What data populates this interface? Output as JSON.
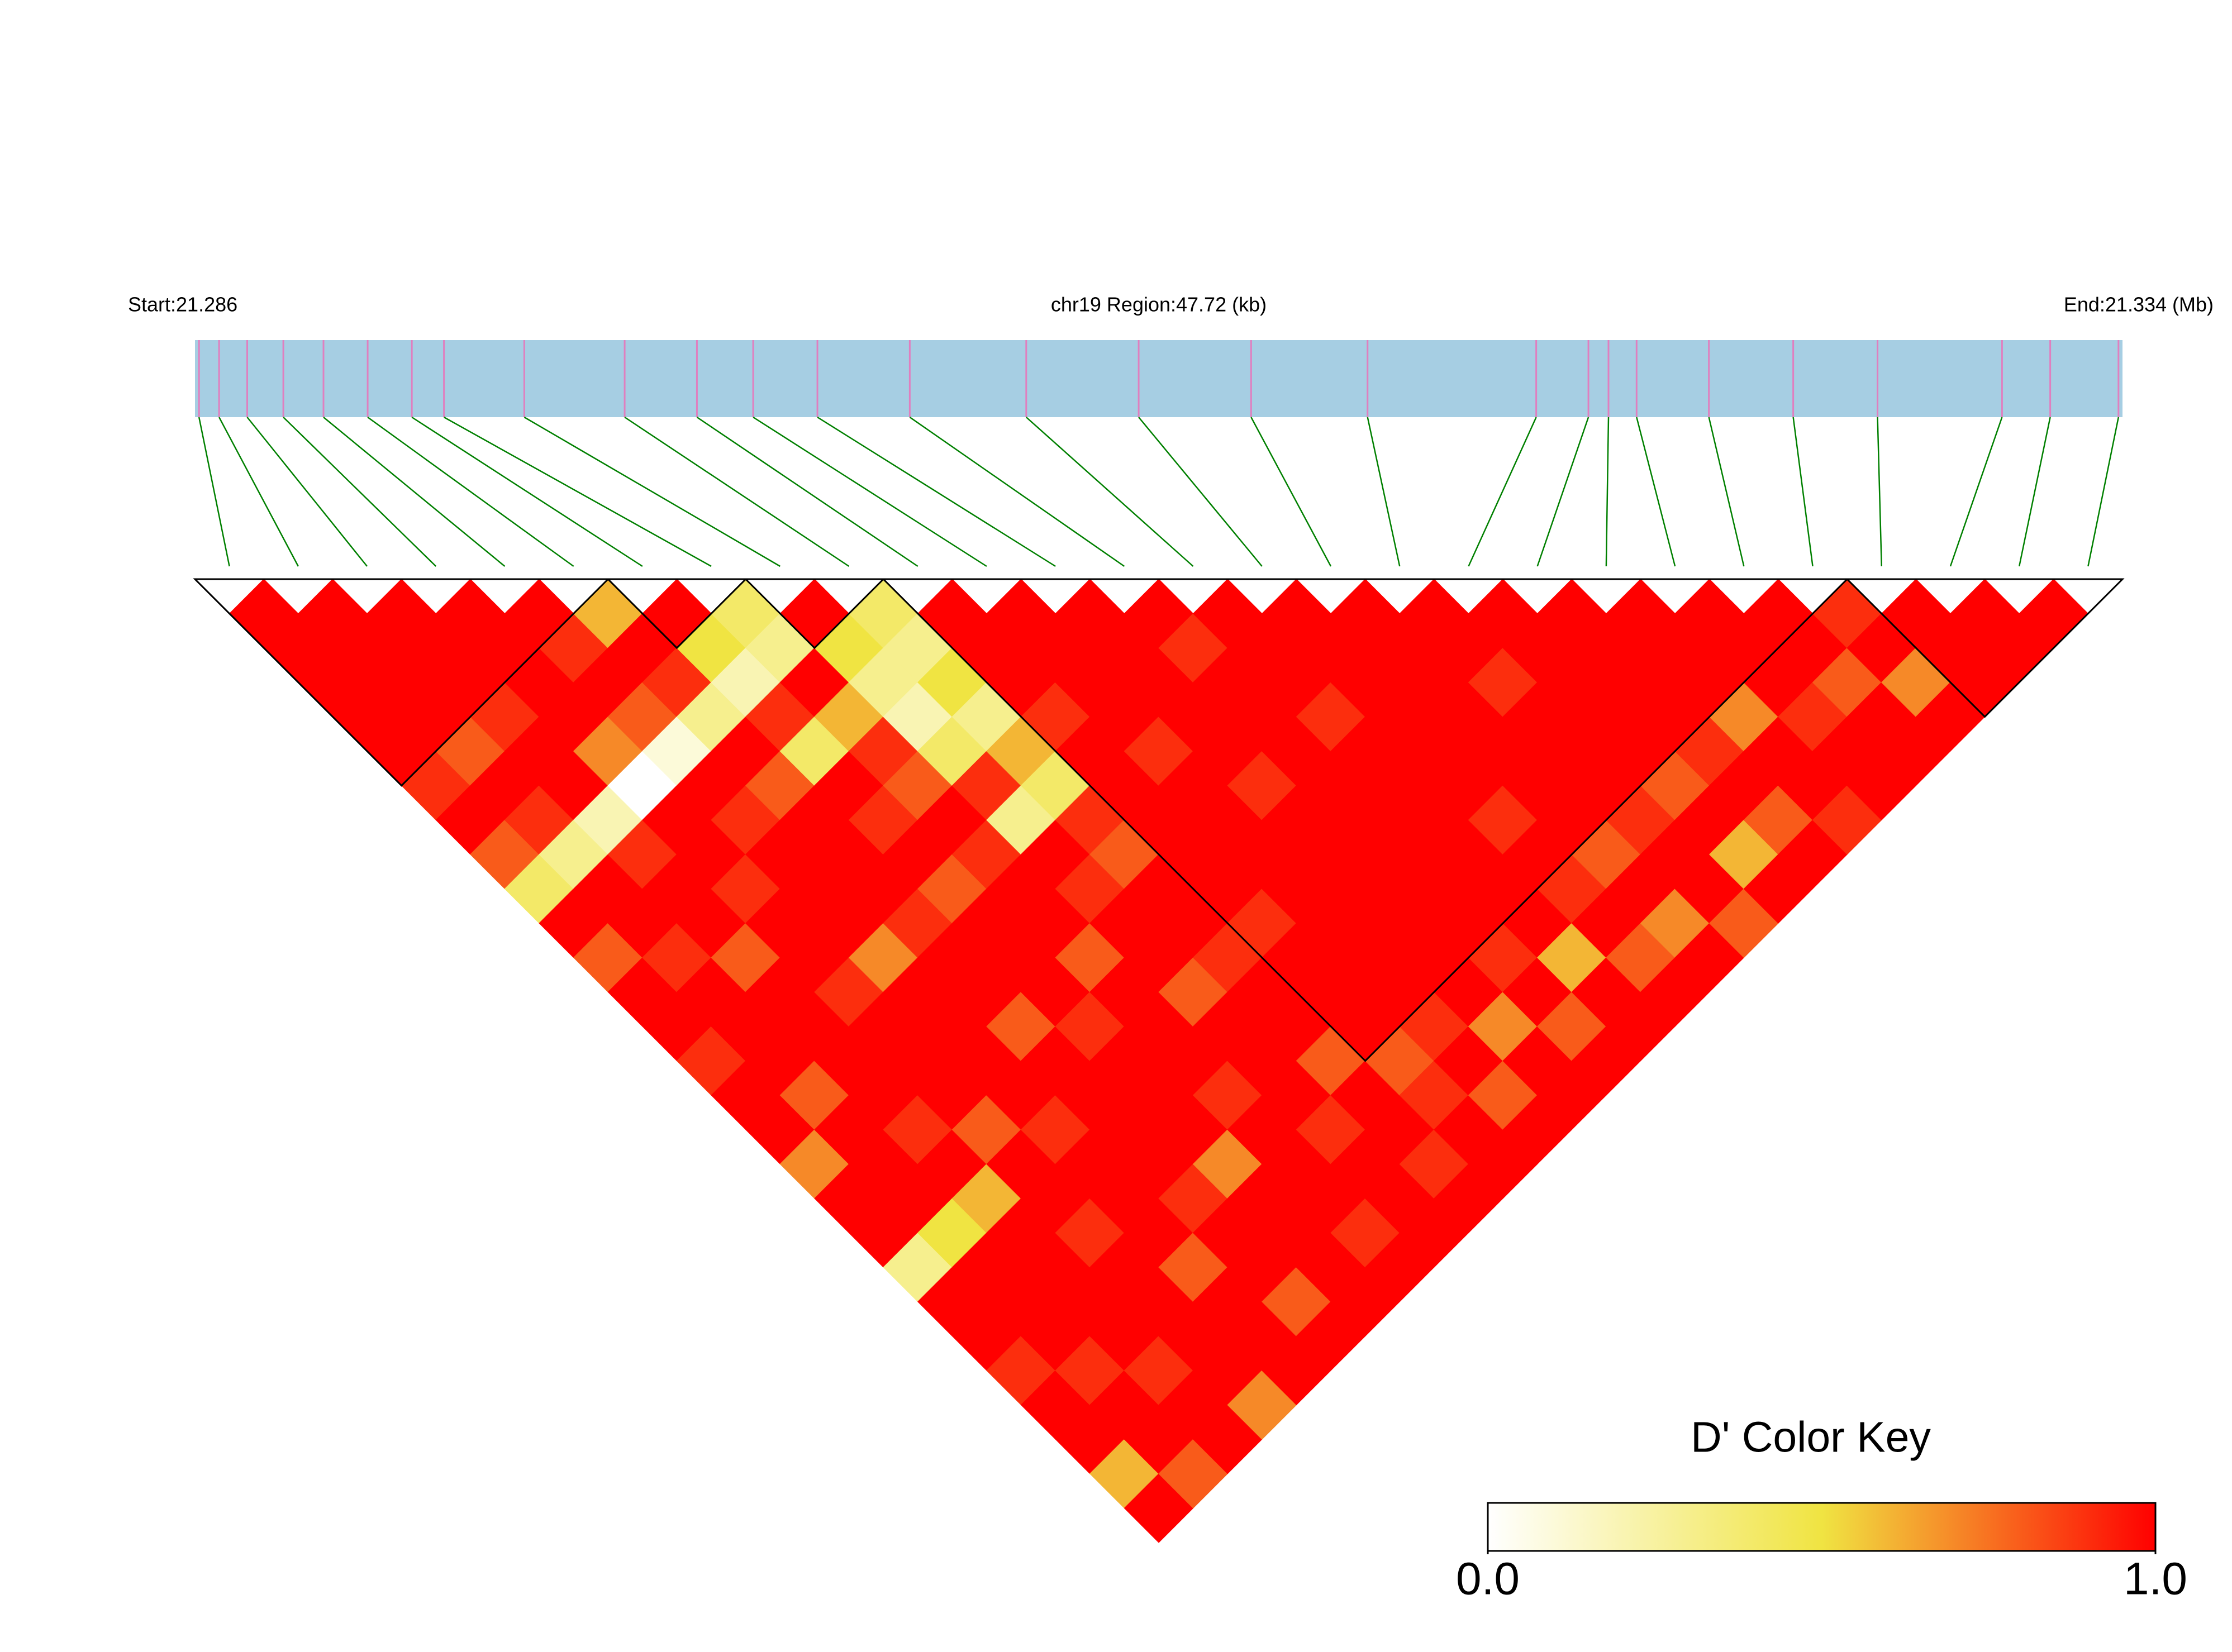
{
  "chart_data": {
    "type": "ld_heatmap",
    "start_label": "Start:21.286",
    "region_label": "chr19 Region:47.72 (kb)",
    "end_label": "End:21.334 (Mb)",
    "xlim": [
      21.286,
      21.334
    ],
    "bar_color": "#a6cee3",
    "snp_line_color": "#e07fbf",
    "connector_color": "#008000",
    "block_color": "#000000",
    "snp_positions": [
      21.2861,
      21.2866,
      21.2873,
      21.2882,
      21.2892,
      21.2903,
      21.2914,
      21.2922,
      21.2942,
      21.2967,
      21.2985,
      21.2999,
      21.3015,
      21.3038,
      21.3067,
      21.3095,
      21.3123,
      21.3152,
      21.3194,
      21.3207,
      21.3212,
      21.3219,
      21.3237,
      21.3258,
      21.3279,
      21.331,
      21.3322,
      21.3339
    ],
    "ld_matrix": [
      [
        1,
        1,
        1,
        1,
        1,
        0.9,
        1,
        0.8,
        0.4,
        1,
        0.8,
        1,
        1,
        0.9,
        1,
        1,
        0.7,
        1,
        1,
        0.3,
        1,
        1,
        0.9,
        1,
        1,
        0.6,
        1
      ],
      [
        1,
        1,
        1,
        1,
        0.8,
        1,
        0.9,
        0.3,
        1,
        1,
        0.9,
        1,
        1,
        1,
        0.8,
        1,
        1,
        1,
        0.5,
        1,
        1,
        1,
        0.9,
        1,
        1,
        0.8
      ],
      [
        1,
        1,
        1,
        0.9,
        1,
        1,
        0.2,
        0.9,
        1,
        1,
        0.8,
        1,
        1,
        1,
        1,
        0.9,
        1,
        0.6,
        1,
        1,
        1,
        1,
        0.9,
        1,
        1
      ],
      [
        1,
        1,
        1,
        1,
        0.7,
        0,
        1,
        1,
        0.9,
        1,
        1,
        0.9,
        1,
        1,
        1,
        0.8,
        1,
        1,
        0.9,
        1,
        1,
        1,
        1,
        0.7
      ],
      [
        1,
        0.9,
        1,
        0.8,
        0.1,
        1,
        0.9,
        1,
        1,
        1,
        0.7,
        1,
        1,
        1,
        1,
        0.9,
        1,
        1,
        1,
        0.8,
        1,
        1,
        1
      ],
      [
        0.6,
        1,
        0.9,
        0.3,
        1,
        0.8,
        1,
        1,
        1,
        0.9,
        1,
        1,
        0.8,
        1,
        1,
        1,
        1,
        0.9,
        1,
        1,
        0.8,
        1
      ],
      [
        1,
        0.5,
        0.2,
        0.9,
        0.4,
        1,
        0.9,
        1,
        0.8,
        1,
        1,
        1,
        0.9,
        1,
        1,
        1,
        0.7,
        1,
        1,
        1,
        1
      ],
      [
        0.4,
        0.3,
        1,
        0.6,
        0.9,
        0.8,
        1,
        0.9,
        1,
        1,
        0.8,
        1,
        1,
        1,
        0.9,
        1,
        1,
        1,
        0.9,
        1
      ],
      [
        1,
        0.5,
        0.3,
        0.2,
        0.4,
        0.9,
        0.3,
        1,
        0.9,
        1,
        1,
        0.8,
        1,
        1,
        1,
        0.9,
        1,
        1,
        1
      ],
      [
        0.4,
        0.3,
        0.5,
        0.3,
        0.6,
        0.4,
        0.9,
        0.8,
        1,
        1,
        0.9,
        1,
        1,
        0.8,
        1,
        1,
        0.9,
        1
      ],
      [
        1,
        1,
        1,
        0.9,
        1,
        1,
        1,
        1,
        1,
        0.9,
        1,
        1,
        1,
        0.8,
        0.9,
        1,
        1
      ],
      [
        1,
        1,
        1,
        1,
        0.9,
        1,
        1,
        1,
        1,
        1,
        1,
        1,
        0.9,
        1,
        0.8,
        1
      ],
      [
        1,
        1,
        1,
        1,
        1,
        0.9,
        1,
        1,
        1,
        1,
        1,
        1,
        0.7,
        1,
        1
      ],
      [
        1,
        0.9,
        1,
        1,
        1,
        1,
        1,
        1,
        1,
        1,
        0.9,
        1,
        0.8,
        1
      ],
      [
        1,
        1,
        1,
        0.9,
        1,
        1,
        1,
        1,
        1,
        1,
        0.6,
        1,
        1
      ],
      [
        1,
        1,
        1,
        1,
        1,
        1,
        0.9,
        1,
        0.9,
        1,
        0.8,
        1
      ],
      [
        1,
        1,
        1,
        1,
        1,
        1,
        1,
        0.8,
        1,
        0.7,
        1
      ],
      [
        1,
        1,
        0.9,
        1,
        1,
        1,
        0.9,
        1,
        1,
        0.8
      ],
      [
        1,
        1,
        1,
        1,
        1,
        0.8,
        1,
        0.6,
        1
      ],
      [
        1,
        1,
        1,
        1,
        0.9,
        1,
        0.8,
        1
      ],
      [
        1,
        1,
        1,
        0.7,
        1,
        1,
        0.9
      ],
      [
        1,
        1,
        1,
        0.9,
        1,
        1
      ],
      [
        1,
        1,
        0.8,
        1,
        1
      ],
      [
        0.9,
        1,
        0.7,
        1
      ],
      [
        1,
        1,
        1
      ],
      [
        1,
        1
      ],
      [
        1
      ]
    ],
    "blocks": [
      [
        0,
        5
      ],
      [
        6,
        7
      ],
      [
        8,
        9
      ],
      [
        10,
        23
      ],
      [
        24,
        27
      ]
    ],
    "colorkey": {
      "title": "D' Color Key",
      "colors": [
        "#ffffff",
        "#f0e442",
        "#ff0000"
      ],
      "ticks": [
        {
          "value": 0,
          "label": "0.0"
        },
        {
          "value": 1,
          "label": "1.0"
        }
      ]
    }
  }
}
